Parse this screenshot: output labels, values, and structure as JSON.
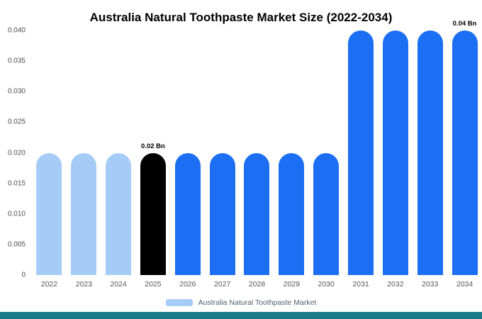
{
  "title": "Australia Natural Toothpaste Market Size (2022-2034)",
  "chart_data": {
    "type": "bar",
    "title": "Australia Natural Toothpaste Market Size (2022-2034)",
    "unit": "Bn",
    "categories": [
      "2022",
      "2023",
      "2024",
      "2025",
      "2026",
      "2027",
      "2028",
      "2029",
      "2030",
      "2031",
      "2032",
      "2033",
      "2034"
    ],
    "values": [
      0.02,
      0.02,
      0.02,
      0.02,
      0.02,
      0.02,
      0.02,
      0.02,
      0.02,
      0.04,
      0.04,
      0.04,
      0.04
    ],
    "bar_colors": [
      "#a5cbf7",
      "#a5cbf7",
      "#a5cbf7",
      "#000000",
      "#1c6ef2",
      "#1c6ef2",
      "#1c6ef2",
      "#1c6ef2",
      "#1c6ef2",
      "#1c6ef2",
      "#1c6ef2",
      "#1c6ef2",
      "#1c6ef2"
    ],
    "annotations": [
      {
        "category": "2025",
        "text": "0.02 Bn"
      },
      {
        "category": "2034",
        "text": "0.04 Bn"
      }
    ],
    "ylim": [
      0,
      0.04
    ],
    "yticks": [
      {
        "label": "0.040",
        "value": 0.04
      },
      {
        "label": "0.035",
        "value": 0.035
      },
      {
        "label": "0.030",
        "value": 0.03
      },
      {
        "label": "0.025",
        "value": 0.025
      },
      {
        "label": "0.020",
        "value": 0.02
      },
      {
        "label": "0.015",
        "value": 0.015
      },
      {
        "label": "0.010",
        "value": 0.01
      },
      {
        "label": "0.005",
        "value": 0.005
      },
      {
        "label": "0",
        "value": 0
      }
    ],
    "grid": false,
    "legend_position": "bottom",
    "legend": [
      {
        "label": "Australia Natural Toothpaste Market",
        "color": "#a5cbf7"
      }
    ]
  },
  "footer": {
    "strip_color": "#1b7a85"
  }
}
